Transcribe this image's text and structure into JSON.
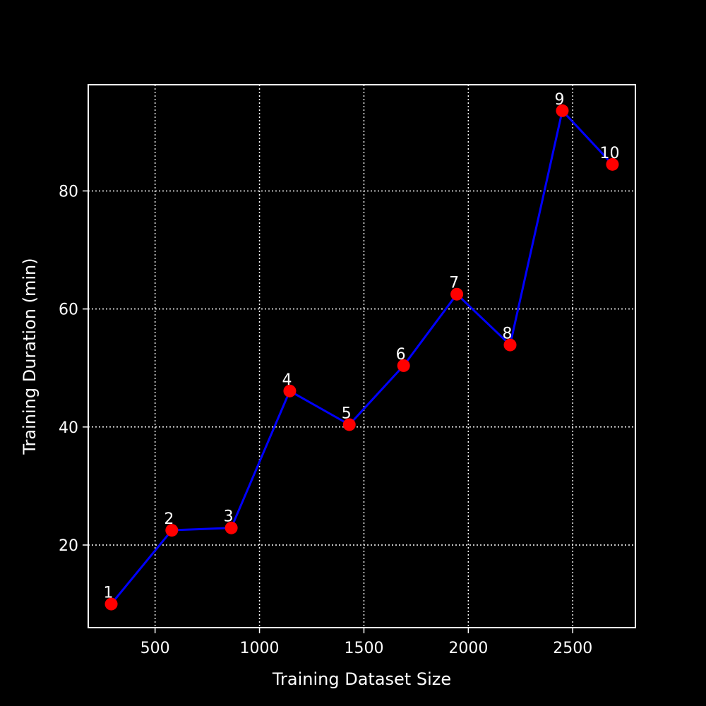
{
  "chart_data": {
    "type": "line",
    "title": "",
    "xlabel": "Training Dataset Size",
    "ylabel": "Training Duration (min)",
    "xlim": [
      180,
      2800
    ],
    "ylim": [
      6,
      98
    ],
    "x_ticks": [
      500,
      1000,
      1500,
      2000,
      2500
    ],
    "y_ticks": [
      20,
      40,
      60,
      80
    ],
    "grid": true,
    "legend": "none",
    "colors": {
      "background": "#000000",
      "line": "#0000ff",
      "marker": "#ff0000",
      "text": "#ffffff",
      "grid": "#ffffff"
    },
    "series": [
      {
        "x": [
          290,
          580,
          865,
          1145,
          1430,
          1690,
          1945,
          2200,
          2450,
          2690
        ],
        "y": [
          10.0,
          22.5,
          22.9,
          46.1,
          40.4,
          50.4,
          62.5,
          53.9,
          93.6,
          84.5
        ],
        "point_labels": [
          "1",
          "2",
          "3",
          "4",
          "5",
          "6",
          "7",
          "8",
          "9",
          "10"
        ]
      }
    ]
  }
}
